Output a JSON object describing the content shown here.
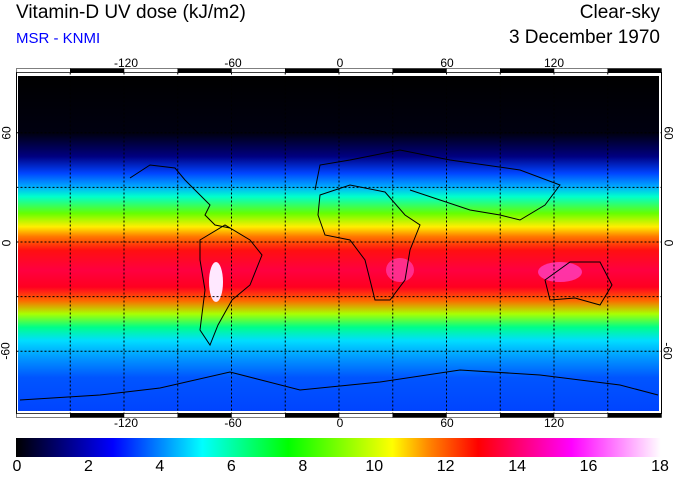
{
  "header": {
    "title": "Vitamin-D UV dose (kJ/m2)",
    "subtitle": "MSR - KNMI",
    "condition": "Clear-sky",
    "date": "3 December 1970"
  },
  "map": {
    "lon_ticks": [
      "-120",
      "-60",
      "0",
      "60",
      "120"
    ],
    "lat_ticks": [
      "60",
      "0",
      "-60"
    ]
  },
  "colorbar": {
    "min": 0,
    "max": 18,
    "tick_labels": [
      "0",
      "2",
      "4",
      "6",
      "8",
      "10",
      "12",
      "14",
      "16",
      "18"
    ],
    "stops": [
      {
        "value": 0,
        "color": "#000000"
      },
      {
        "value": 2.7,
        "color": "#0000ff"
      },
      {
        "value": 5.2,
        "color": "#00ffff"
      },
      {
        "value": 7.6,
        "color": "#00ff00"
      },
      {
        "value": 10.5,
        "color": "#ffff00"
      },
      {
        "value": 11.5,
        "color": "#ff8800"
      },
      {
        "value": 12.9,
        "color": "#ff0000"
      },
      {
        "value": 15.5,
        "color": "#ff00ff"
      },
      {
        "value": 18,
        "color": "#ffffff"
      }
    ]
  }
}
